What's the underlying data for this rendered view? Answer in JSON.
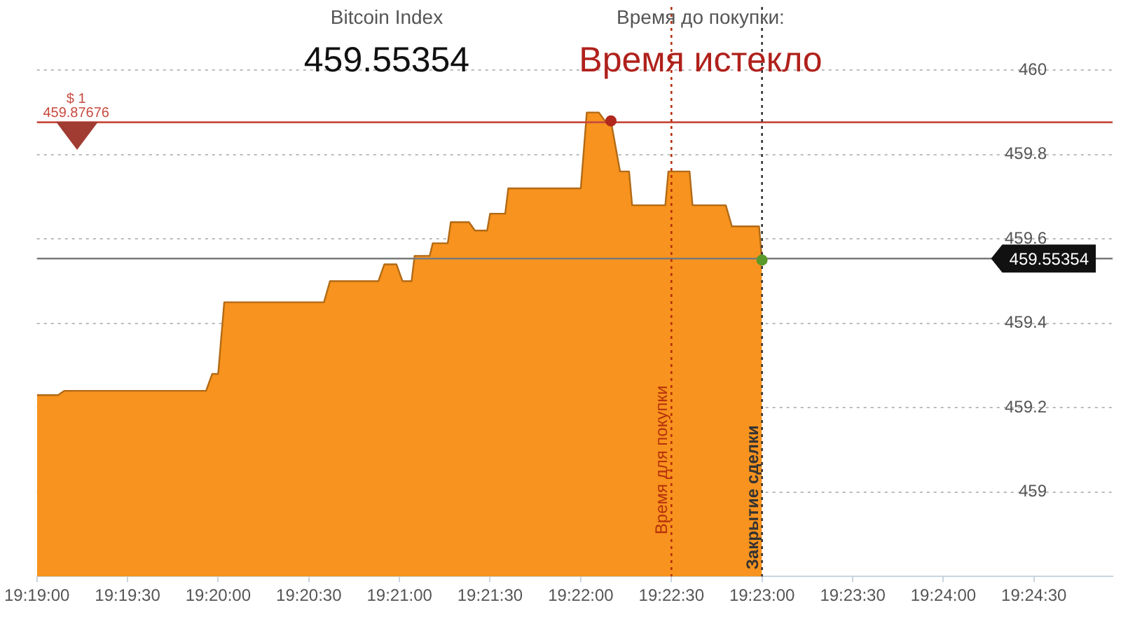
{
  "chart_data": {
    "type": "area",
    "title": "Bitcoin Index",
    "subtitle": "459.55354",
    "annotations": [
      "Время до покупки:",
      "Время истекло"
    ],
    "series": [
      {
        "color": "#f7931e",
        "x": [
          19.31667,
          19.31861,
          19.31917,
          19.33222,
          19.33278,
          19.33333,
          19.33389,
          19.34306,
          19.34361,
          19.34806,
          19.34861,
          19.34972,
          19.35028,
          19.35111,
          19.35139,
          19.35278,
          19.35306,
          19.35444,
          19.35472,
          19.35639,
          19.35694,
          19.35806,
          19.35833,
          19.35972,
          19.36,
          19.36667,
          19.36722,
          19.36833,
          19.36889,
          19.36944,
          19.37028,
          19.37111,
          19.37139,
          19.37444,
          19.37472,
          19.37667,
          19.37694,
          19.38,
          19.38056,
          19.38306,
          19.38333
        ],
        "values": [
          459.23,
          459.23,
          459.24,
          459.24,
          459.28,
          459.28,
          459.45,
          459.45,
          459.5,
          459.5,
          459.54,
          459.54,
          459.5,
          459.5,
          459.56,
          459.56,
          459.59,
          459.59,
          459.64,
          459.64,
          459.62,
          459.62,
          459.66,
          459.66,
          459.72,
          459.72,
          459.9,
          459.9,
          459.88,
          459.88,
          459.76,
          459.76,
          459.68,
          459.68,
          459.76,
          459.76,
          459.68,
          459.68,
          459.63,
          459.63,
          459.55
        ]
      },
      {
        "type": "scatter",
        "marker": "circle",
        "x": [
          19.36944,
          19.38333
        ],
        "values": [
          459.88,
          459.55
        ],
        "colors": [
          "#b0281e",
          "#5a9a2a"
        ]
      }
    ],
    "xlim": [
      19.31667,
      19.41556
    ],
    "xticks": [
      {
        "value": 19.31667,
        "label": "19:19:00"
      },
      {
        "value": 19.325,
        "label": "19:19:30"
      },
      {
        "value": 19.33333,
        "label": "19:20:00"
      },
      {
        "value": 19.34167,
        "label": "19:20:30"
      },
      {
        "value": 19.35,
        "label": "19:21:00"
      },
      {
        "value": 19.35833,
        "label": "19:21:30"
      },
      {
        "value": 19.36667,
        "label": "19:22:00"
      },
      {
        "value": 19.375,
        "label": "19:22:30"
      },
      {
        "value": 19.38333,
        "label": "19:23:00"
      },
      {
        "value": 19.39167,
        "label": "19:23:30"
      },
      {
        "value": 19.4,
        "label": "19:24:00"
      },
      {
        "value": 19.40833,
        "label": "19:24:30"
      }
    ],
    "ylim": [
      458.8,
      460.15
    ],
    "yticks": [
      459,
      459.2,
      459.4,
      459.6,
      459.8,
      460
    ],
    "ref_lines": [
      {
        "axis": "y",
        "value": 459.87676,
        "label": "$ 1\n459.87676",
        "color": "#c84b3f"
      },
      {
        "axis": "y",
        "value": 459.55354,
        "label": "459.55354",
        "color": "#7a7a7a"
      },
      {
        "axis": "x",
        "value": 19.375,
        "label": "Время для покупки",
        "color": "#b5300c",
        "line_style": "dotted"
      },
      {
        "axis": "x",
        "value": 19.38333,
        "label": "Закрытие сделки",
        "color": "#333333",
        "line_style": "dotted"
      }
    ],
    "grid": "y",
    "legend": false,
    "marker": "none"
  }
}
